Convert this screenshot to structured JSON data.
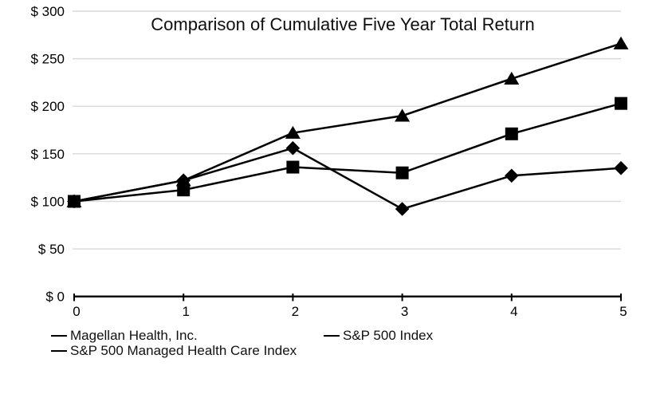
{
  "page": {
    "background_color": "#ffffff"
  },
  "chart_data": {
    "type": "line",
    "title": "Comparison of Cumulative Five Year Total Return",
    "xlabel": "",
    "ylabel": "",
    "x": [
      0,
      1,
      2,
      3,
      4,
      5
    ],
    "xtick_labels": [
      "0",
      "1",
      "2",
      "3",
      "4",
      "5"
    ],
    "ytick_labels": [
      "$ 0",
      "$ 50",
      "$ 100",
      "$ 150",
      "$ 200",
      "$ 250",
      "$ 300"
    ],
    "ytick_step": 50,
    "ylim": [
      0,
      300
    ],
    "grid": true,
    "legend_position": "bottom-left",
    "line_color": "#000000",
    "marker_color": "#000000",
    "grid_color": "#d9d9d9",
    "axis_color": "#000000",
    "series": [
      {
        "name": "Magellan Health, Inc.",
        "marker": "diamond",
        "values": [
          100,
          122,
          156,
          92,
          127,
          135
        ]
      },
      {
        "name": "S&P 500 Index",
        "marker": "square",
        "values": [
          100,
          112,
          136,
          130,
          171,
          203
        ]
      },
      {
        "name": "S&P 500 Managed Health Care Index",
        "marker": "triangle",
        "values": [
          100,
          122,
          172,
          190,
          229,
          266
        ]
      }
    ]
  }
}
